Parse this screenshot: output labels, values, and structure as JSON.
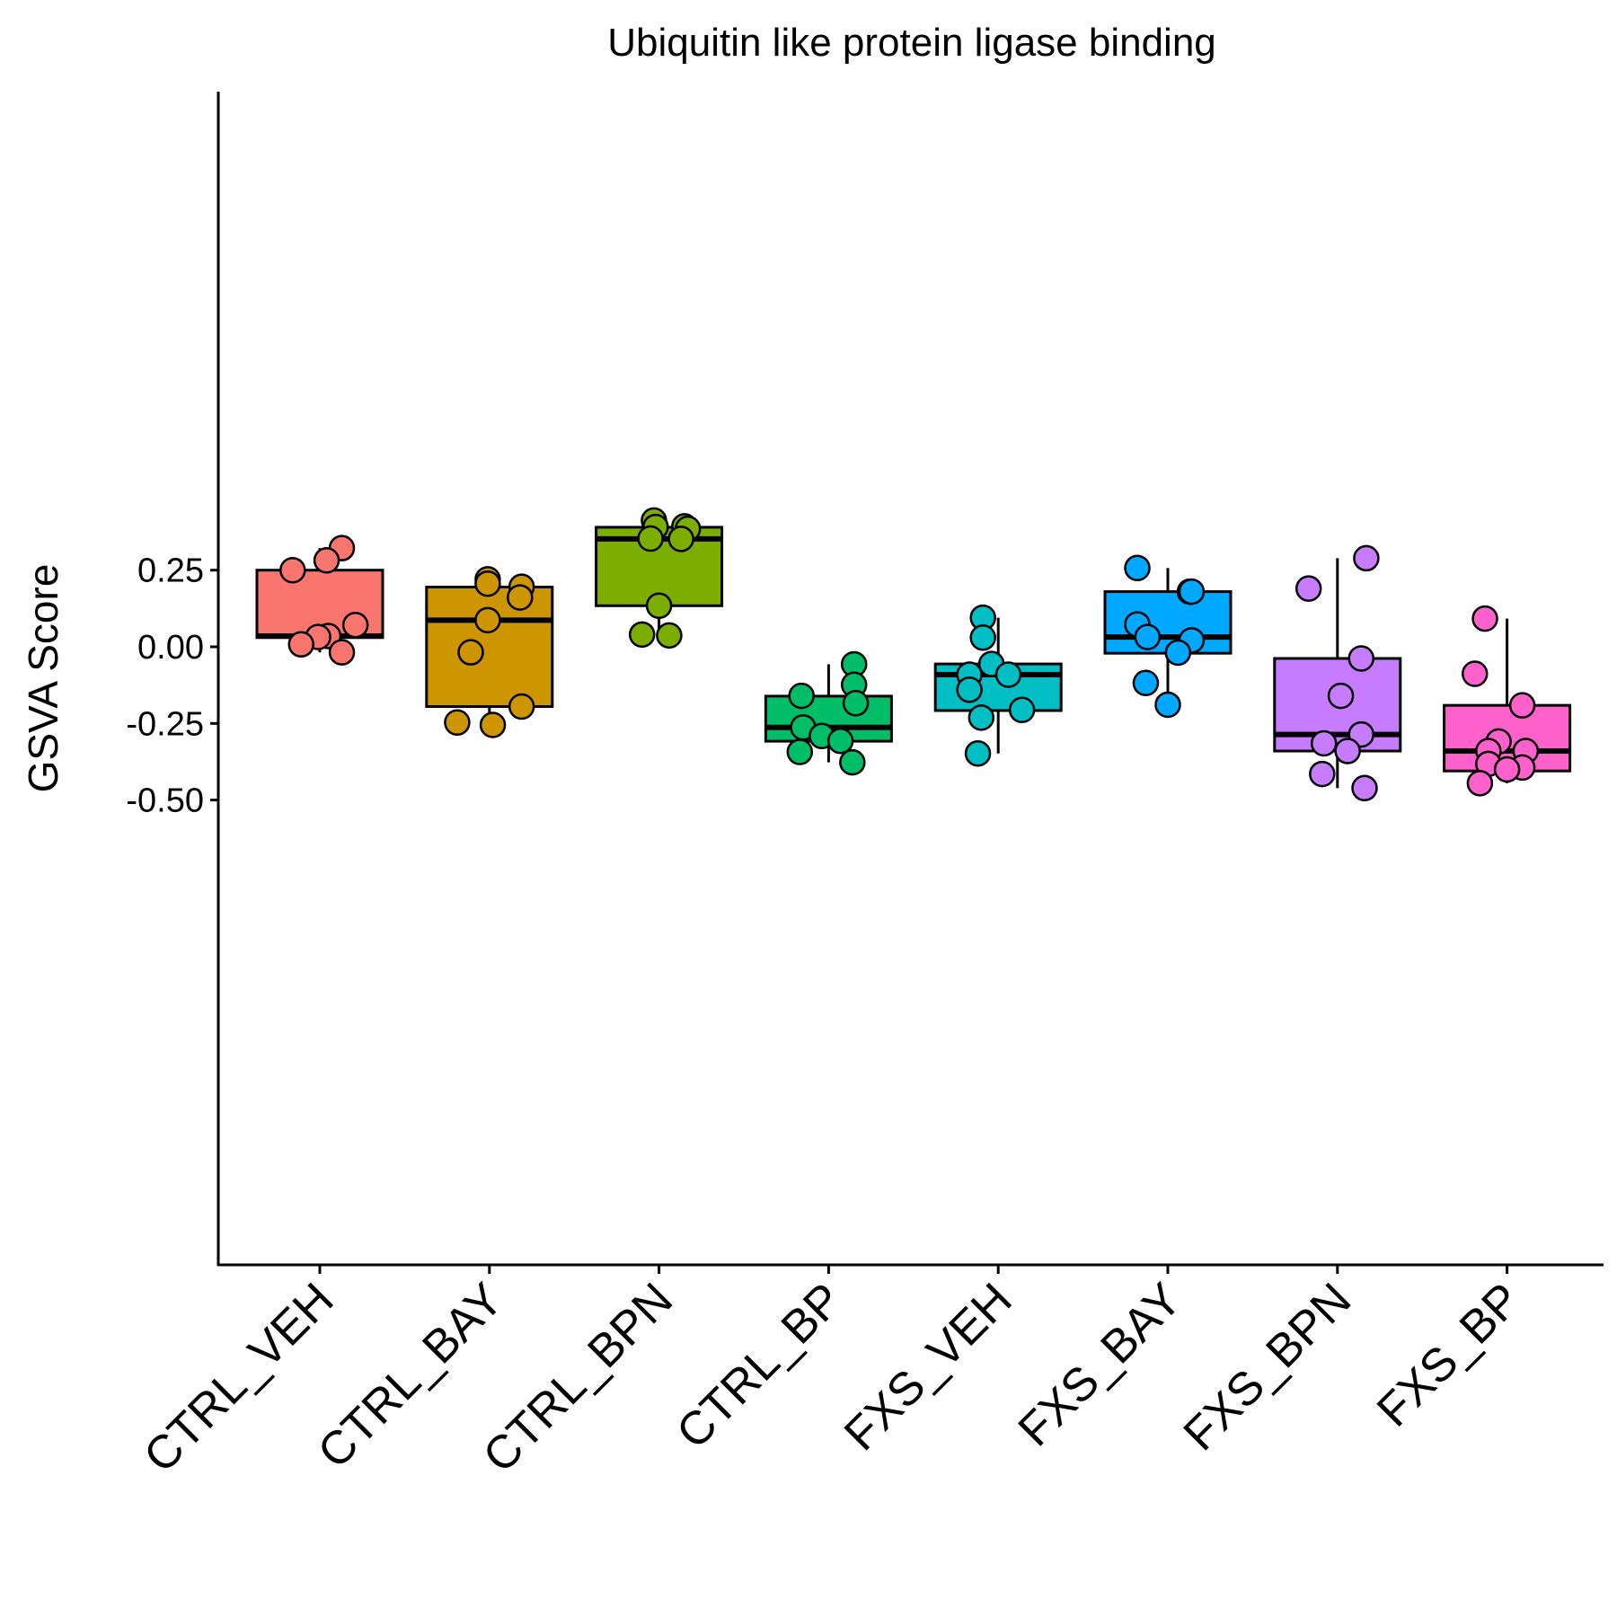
{
  "chart_data": {
    "type": "box",
    "title": "Ubiquitin like protein ligase binding",
    "ylabel": "GSVA Score",
    "xlabel": "",
    "ylim": [
      -0.505,
      0.455
    ],
    "yticks": [
      0.25,
      0.0,
      -0.25,
      -0.5
    ],
    "ytick_labels": [
      "0.25",
      "0.00",
      "-0.25",
      "-0.50"
    ],
    "grid": false,
    "legend": "none",
    "categories": [
      "CTRL_VEH",
      "CTRL_BAY",
      "CTRL_BPN",
      "CTRL_BP",
      "FXS_VEH",
      "FXS_BAY",
      "FXS_BPN",
      "FXS_BP"
    ],
    "colors": [
      "#F8766D",
      "#CD9600",
      "#7CAE00",
      "#00BE67",
      "#00BFC4",
      "#00A9FF",
      "#C77CFF",
      "#FF61CC"
    ],
    "boxes": [
      {
        "q1": 0.03,
        "median": 0.035,
        "q3": 0.25,
        "whisker_low": -0.018,
        "whisker_high": 0.322
      },
      {
        "q1": -0.195,
        "median": 0.087,
        "q3": 0.195,
        "whisker_low": -0.255,
        "whisker_high": 0.22
      },
      {
        "q1": 0.134,
        "median": 0.352,
        "q3": 0.39,
        "whisker_low": 0.035,
        "whisker_high": 0.412
      },
      {
        "q1": -0.308,
        "median": -0.263,
        "q3": -0.161,
        "whisker_low": -0.377,
        "whisker_high": -0.057
      },
      {
        "q1": -0.208,
        "median": -0.091,
        "q3": -0.056,
        "whisker_low": -0.348,
        "whisker_high": 0.095
      },
      {
        "q1": -0.021,
        "median": 0.032,
        "q3": 0.18,
        "whisker_low": -0.189,
        "whisker_high": 0.257
      },
      {
        "q1": -0.34,
        "median": -0.286,
        "q3": -0.038,
        "whisker_low": -0.461,
        "whisker_high": 0.289
      },
      {
        "q1": -0.405,
        "median": -0.34,
        "q3": -0.191,
        "whisker_low": -0.445,
        "whisker_high": 0.092
      }
    ],
    "points": [
      [
        {
          "dx": 0.13,
          "y": 0.322
        },
        {
          "dx": 0.04,
          "y": 0.282
        },
        {
          "dx": -0.16,
          "y": 0.25
        },
        {
          "dx": 0.21,
          "y": 0.071
        },
        {
          "dx": 0.05,
          "y": 0.035
        },
        {
          "dx": -0.01,
          "y": 0.032
        },
        {
          "dx": -0.11,
          "y": 0.008
        },
        {
          "dx": 0.13,
          "y": -0.018
        }
      ],
      [
        {
          "dx": -0.01,
          "y": 0.22
        },
        {
          "dx": -0.01,
          "y": 0.206
        },
        {
          "dx": 0.19,
          "y": 0.196
        },
        {
          "dx": 0.18,
          "y": 0.161
        },
        {
          "dx": -0.01,
          "y": 0.087
        },
        {
          "dx": -0.11,
          "y": -0.018
        },
        {
          "dx": 0.19,
          "y": -0.195
        },
        {
          "dx": -0.19,
          "y": -0.247
        },
        {
          "dx": 0.02,
          "y": -0.255
        }
      ],
      [
        {
          "dx": -0.03,
          "y": 0.412
        },
        {
          "dx": -0.02,
          "y": 0.391
        },
        {
          "dx": 0.15,
          "y": 0.393
        },
        {
          "dx": 0.17,
          "y": 0.385
        },
        {
          "dx": -0.05,
          "y": 0.353
        },
        {
          "dx": 0.13,
          "y": 0.352
        },
        {
          "dx": 0.0,
          "y": 0.134
        },
        {
          "dx": -0.1,
          "y": 0.04
        },
        {
          "dx": 0.06,
          "y": 0.037
        }
      ],
      [
        {
          "dx": 0.15,
          "y": -0.057
        },
        {
          "dx": 0.15,
          "y": -0.124
        },
        {
          "dx": -0.16,
          "y": -0.16
        },
        {
          "dx": 0.16,
          "y": -0.184
        },
        {
          "dx": -0.15,
          "y": -0.263
        },
        {
          "dx": -0.04,
          "y": -0.291
        },
        {
          "dx": 0.07,
          "y": -0.307
        },
        {
          "dx": -0.17,
          "y": -0.343
        },
        {
          "dx": 0.14,
          "y": -0.377
        }
      ],
      [
        {
          "dx": -0.09,
          "y": 0.095
        },
        {
          "dx": -0.09,
          "y": 0.03
        },
        {
          "dx": -0.04,
          "y": -0.056
        },
        {
          "dx": -0.17,
          "y": -0.091
        },
        {
          "dx": 0.06,
          "y": -0.091
        },
        {
          "dx": -0.17,
          "y": -0.14
        },
        {
          "dx": 0.14,
          "y": -0.206
        },
        {
          "dx": -0.1,
          "y": -0.231
        },
        {
          "dx": -0.12,
          "y": -0.348
        }
      ],
      [
        {
          "dx": -0.18,
          "y": 0.257
        },
        {
          "dx": 0.13,
          "y": 0.18
        },
        {
          "dx": 0.14,
          "y": 0.18
        },
        {
          "dx": -0.18,
          "y": 0.073
        },
        {
          "dx": -0.12,
          "y": 0.032
        },
        {
          "dx": 0.14,
          "y": 0.021
        },
        {
          "dx": 0.06,
          "y": -0.019
        },
        {
          "dx": -0.13,
          "y": -0.118
        },
        {
          "dx": 0.0,
          "y": -0.189
        }
      ],
      [
        {
          "dx": 0.17,
          "y": 0.289
        },
        {
          "dx": -0.17,
          "y": 0.19
        },
        {
          "dx": 0.14,
          "y": -0.038
        },
        {
          "dx": 0.02,
          "y": -0.16
        },
        {
          "dx": 0.14,
          "y": -0.286
        },
        {
          "dx": -0.08,
          "y": -0.315
        },
        {
          "dx": 0.06,
          "y": -0.34
        },
        {
          "dx": -0.09,
          "y": -0.415
        },
        {
          "dx": 0.16,
          "y": -0.461
        }
      ],
      [
        {
          "dx": -0.13,
          "y": 0.092
        },
        {
          "dx": -0.19,
          "y": -0.088
        },
        {
          "dx": 0.09,
          "y": -0.191
        },
        {
          "dx": -0.05,
          "y": -0.309
        },
        {
          "dx": 0.11,
          "y": -0.34
        },
        {
          "dx": -0.11,
          "y": -0.34
        },
        {
          "dx": -0.11,
          "y": -0.382
        },
        {
          "dx": 0.09,
          "y": -0.394
        },
        {
          "dx": 0.0,
          "y": -0.4
        },
        {
          "dx": -0.16,
          "y": -0.445
        }
      ]
    ]
  }
}
